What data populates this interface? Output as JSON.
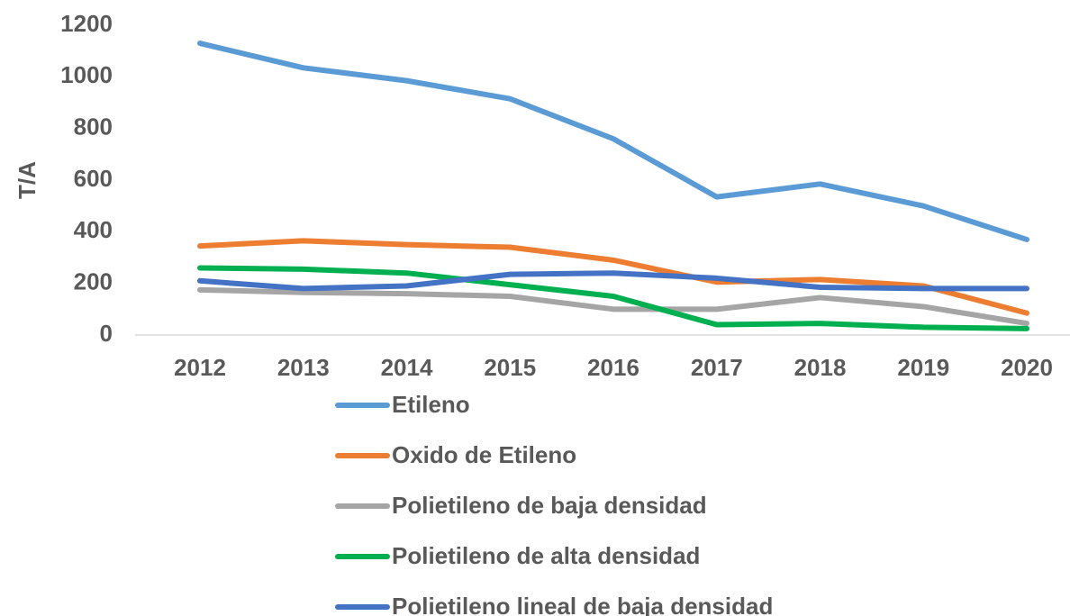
{
  "chart_data": {
    "type": "line",
    "y_label": "T/A",
    "categories": [
      "2012",
      "2013",
      "2014",
      "2015",
      "2016",
      "2017",
      "2018",
      "2019",
      "2020"
    ],
    "series": [
      {
        "name": "Etileno",
        "color": "#5b9bd5",
        "values": [
          1130,
          1035,
          985,
          915,
          760,
          535,
          585,
          500,
          370
        ]
      },
      {
        "name": "Oxido de Etileno",
        "color": "#ed7d31",
        "values": [
          345,
          365,
          350,
          340,
          290,
          205,
          215,
          190,
          85
        ]
      },
      {
        "name": "Polietileno de baja densidad",
        "color": "#a5a5a5",
        "values": [
          175,
          165,
          160,
          150,
          100,
          100,
          145,
          110,
          45
        ]
      },
      {
        "name": "Polietileno de alta densidad",
        "color": "#00b050",
        "values": [
          260,
          255,
          240,
          195,
          150,
          40,
          45,
          30,
          25
        ]
      },
      {
        "name": "Polietileno lineal  de baja densidad",
        "color": "#4472c4",
        "values": [
          210,
          180,
          190,
          235,
          240,
          220,
          185,
          180,
          180
        ]
      }
    ],
    "ylim": [
      0,
      1200
    ],
    "yticks": [
      0,
      200,
      400,
      600,
      800,
      1000,
      1200
    ],
    "grid": false
  }
}
